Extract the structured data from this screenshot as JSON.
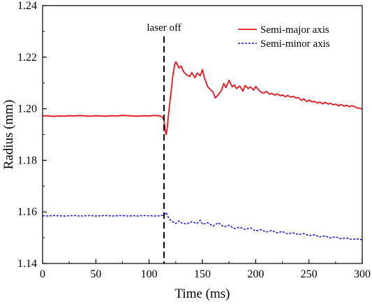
{
  "chart_data": {
    "type": "line",
    "xlabel": "Time (ms)",
    "ylabel": "Radius (mm)",
    "xlim": [
      0,
      300
    ],
    "ylim": [
      1.14,
      1.24
    ],
    "xticks": [
      0,
      50,
      100,
      150,
      200,
      250,
      300
    ],
    "yticks": [
      1.14,
      1.16,
      1.18,
      1.2,
      1.22,
      1.24
    ],
    "ytick_labels": [
      "1.14",
      "1.16",
      "1.18",
      "1.20",
      "1.22",
      "1.24"
    ],
    "grid": false,
    "legend_position": "top-right",
    "annotation": {
      "label": "laser off",
      "x": 114
    },
    "series": [
      {
        "name": "Semi-major axis",
        "color": "#e8141c",
        "style": "solid",
        "x": [
          0,
          5,
          10,
          15,
          20,
          25,
          30,
          35,
          40,
          45,
          50,
          55,
          60,
          65,
          70,
          75,
          80,
          85,
          90,
          95,
          100,
          105,
          110,
          112,
          114,
          115,
          116,
          117,
          118,
          120,
          122,
          124,
          125,
          126,
          128,
          130,
          132,
          135,
          138,
          140,
          143,
          145,
          148,
          150,
          152,
          155,
          158,
          160,
          162,
          165,
          168,
          170,
          172,
          175,
          178,
          180,
          182,
          185,
          188,
          190,
          193,
          195,
          198,
          200,
          203,
          205,
          208,
          210,
          213,
          215,
          218,
          220,
          223,
          225,
          228,
          230,
          233,
          235,
          238,
          240,
          243,
          245,
          248,
          250,
          253,
          255,
          258,
          260,
          263,
          265,
          268,
          270,
          273,
          275,
          278,
          280,
          283,
          285,
          288,
          290,
          293,
          295,
          298,
          300
        ],
        "y": [
          1.1972,
          1.1973,
          1.197,
          1.1972,
          1.1971,
          1.1973,
          1.1972,
          1.1974,
          1.1972,
          1.1971,
          1.1973,
          1.1972,
          1.1971,
          1.1973,
          1.1972,
          1.1974,
          1.1973,
          1.1972,
          1.1971,
          1.1973,
          1.1972,
          1.1974,
          1.1972,
          1.197,
          1.1955,
          1.1915,
          1.19,
          1.1925,
          1.197,
          1.2045,
          1.212,
          1.2172,
          1.2182,
          1.2175,
          1.2158,
          1.2166,
          1.2145,
          1.2132,
          1.2125,
          1.214,
          1.212,
          1.2138,
          1.2128,
          1.2152,
          1.2118,
          1.2085,
          1.2072,
          1.2065,
          1.2042,
          1.2055,
          1.2072,
          1.2098,
          1.2082,
          1.211,
          1.2085,
          1.2092,
          1.2078,
          1.2088,
          1.2068,
          1.209,
          1.2078,
          1.2085,
          1.2072,
          1.2086,
          1.2072,
          1.2064,
          1.2061,
          1.2068,
          1.2056,
          1.206,
          1.2052,
          1.2058,
          1.205,
          1.2054,
          1.2046,
          1.2052,
          1.2045,
          1.2048,
          1.2041,
          1.2044,
          1.2032,
          1.2038,
          1.2028,
          1.2034,
          1.2026,
          1.2029,
          1.2022,
          1.2026,
          1.2019,
          1.2025,
          1.2018,
          1.2021,
          1.2015,
          1.2018,
          1.2011,
          1.2016,
          1.201,
          1.2014,
          1.2008,
          1.2012,
          1.2008,
          1.2003,
          1.2002,
          1.1998
        ]
      },
      {
        "name": "Semi-minor axis",
        "color": "#1c1cdc",
        "style": "dashed",
        "x": [
          0,
          5,
          10,
          15,
          20,
          25,
          30,
          35,
          40,
          45,
          50,
          55,
          60,
          65,
          70,
          75,
          80,
          85,
          90,
          95,
          100,
          105,
          110,
          114,
          116,
          118,
          120,
          122,
          125,
          128,
          130,
          135,
          140,
          145,
          148,
          150,
          155,
          160,
          165,
          170,
          175,
          180,
          185,
          190,
          195,
          200,
          205,
          210,
          215,
          220,
          225,
          230,
          235,
          240,
          245,
          250,
          255,
          260,
          265,
          270,
          275,
          280,
          285,
          290,
          295,
          300
        ],
        "y": [
          1.1585,
          1.1584,
          1.1586,
          1.1585,
          1.1584,
          1.1585,
          1.1586,
          1.1584,
          1.1585,
          1.1586,
          1.1584,
          1.1585,
          1.1586,
          1.1584,
          1.1585,
          1.1586,
          1.1584,
          1.1585,
          1.1584,
          1.1586,
          1.1585,
          1.1584,
          1.1585,
          1.1588,
          1.1598,
          1.1578,
          1.1568,
          1.1562,
          1.1555,
          1.1565,
          1.1558,
          1.1553,
          1.1562,
          1.1555,
          1.1568,
          1.1552,
          1.1558,
          1.1545,
          1.1558,
          1.1542,
          1.1548,
          1.1535,
          1.1541,
          1.1532,
          1.1538,
          1.1526,
          1.1531,
          1.1522,
          1.1528,
          1.1519,
          1.1524,
          1.1515,
          1.1519,
          1.1512,
          1.1516,
          1.1508,
          1.1511,
          1.1503,
          1.1507,
          1.1499,
          1.1503,
          1.1496,
          1.1499,
          1.1493,
          1.1495,
          1.1492
        ]
      }
    ]
  }
}
